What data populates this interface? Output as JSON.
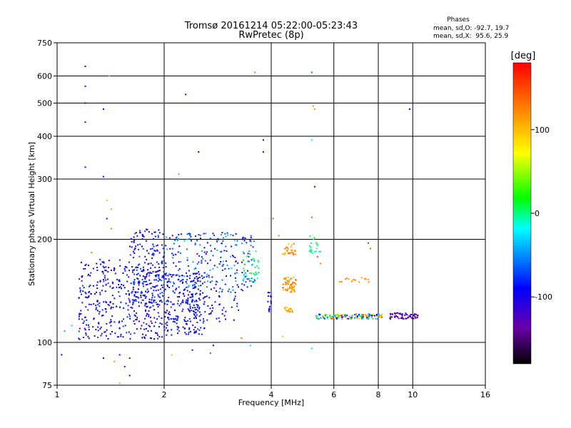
{
  "chart_data": {
    "type": "scatter",
    "title": "Tromsø 20161214 05:22:00-05:23:43",
    "subtitle": "RwPretec (8p)",
    "xlabel": "Frequency [MHz]",
    "ylabel": "Stationary phase Virtual Height [km]",
    "x_scale": "log",
    "y_scale": "log",
    "xlim": [
      1,
      16
    ],
    "ylim": [
      75,
      750
    ],
    "x_ticks": [
      1,
      2,
      4,
      6,
      8,
      10,
      16
    ],
    "x_tick_labels": [
      "1",
      "2",
      "4",
      "6",
      "8",
      "10",
      "16"
    ],
    "y_ticks": [
      75,
      100,
      200,
      300,
      400,
      500,
      600,
      750
    ],
    "y_tick_labels": [
      "75",
      "100",
      "200",
      "300",
      "400",
      "500",
      "600",
      "750"
    ],
    "grid": true,
    "colorbar": {
      "label": "[deg]",
      "range": [
        -180,
        180
      ],
      "ticks": [
        100,
        0,
        -100
      ],
      "tick_labels": [
        "100",
        "0",
        "-100"
      ],
      "colors": [
        "#000000",
        "#6a00a8",
        "#0000ff",
        "#00ffff",
        "#00ff00",
        "#ffff00",
        "#ff8000",
        "#ff0000"
      ]
    },
    "stats": {
      "heading": "Phases",
      "lines": [
        "mean, sd,O: -92.7, 19.7",
        "mean, sd,X:  95.6, 25.9"
      ]
    },
    "clusters": [
      {
        "fmin": 1.15,
        "fmax": 2.0,
        "hmin": 102,
        "hmax": 175,
        "n": 420,
        "pmin": -120,
        "pmax": -70
      },
      {
        "fmin": 1.6,
        "fmax": 2.0,
        "hmin": 130,
        "hmax": 215,
        "n": 160,
        "pmin": -120,
        "pmax": -60
      },
      {
        "fmin": 2.0,
        "fmax": 2.6,
        "hmin": 105,
        "hmax": 160,
        "n": 230,
        "pmin": -115,
        "pmax": -70
      },
      {
        "fmin": 2.0,
        "fmax": 3.6,
        "hmin": 140,
        "hmax": 210,
        "n": 240,
        "pmin": -120,
        "pmax": -30
      },
      {
        "fmin": 2.3,
        "fmax": 3.3,
        "hmin": 115,
        "hmax": 140,
        "n": 60,
        "pmin": -110,
        "pmax": -75
      },
      {
        "fmin": 3.3,
        "fmax": 3.7,
        "hmin": 150,
        "hmax": 185,
        "n": 40,
        "pmin": -40,
        "pmax": 20
      },
      {
        "fmin": 3.9,
        "fmax": 4.0,
        "hmin": 120,
        "hmax": 140,
        "n": 15,
        "pmin": -120,
        "pmax": -90
      },
      {
        "fmin": 4.3,
        "fmax": 4.7,
        "hmin": 140,
        "hmax": 155,
        "n": 60,
        "pmin": 95,
        "pmax": 140
      },
      {
        "fmin": 4.3,
        "fmax": 4.7,
        "hmin": 180,
        "hmax": 195,
        "n": 30,
        "pmin": 90,
        "pmax": 140
      },
      {
        "fmin": 4.35,
        "fmax": 4.6,
        "hmin": 122,
        "hmax": 127,
        "n": 20,
        "pmin": 100,
        "pmax": 130
      },
      {
        "fmin": 5.1,
        "fmax": 5.5,
        "hmin": 182,
        "hmax": 205,
        "n": 20,
        "pmin": -30,
        "pmax": 30
      },
      {
        "fmin": 5.35,
        "fmax": 8.2,
        "hmin": 117,
        "hmax": 121,
        "n": 150,
        "pmin": -120,
        "pmax": 160
      },
      {
        "fmin": 8.6,
        "fmax": 10.4,
        "hmin": 117,
        "hmax": 122,
        "n": 60,
        "pmin": -160,
        "pmax": -110
      },
      {
        "fmin": 6.2,
        "fmax": 7.6,
        "hmin": 150,
        "hmax": 155,
        "n": 15,
        "pmin": 110,
        "pmax": 130
      }
    ],
    "scattered_points": [
      [
        1.2,
        640,
        -90
      ],
      [
        1.2,
        560,
        -95
      ],
      [
        1.2,
        500,
        -95
      ],
      [
        1.2,
        440,
        -95
      ],
      [
        1.2,
        325,
        -95
      ],
      [
        1.35,
        480,
        -95
      ],
      [
        1.4,
        600,
        120
      ],
      [
        1.35,
        305,
        -90
      ],
      [
        1.38,
        260,
        100
      ],
      [
        1.42,
        245,
        110
      ],
      [
        1.38,
        230,
        -85
      ],
      [
        1.42,
        215,
        130
      ],
      [
        2.3,
        530,
        -95
      ],
      [
        2.2,
        310,
        120
      ],
      [
        2.5,
        360,
        -95
      ],
      [
        3.6,
        615,
        130
      ],
      [
        3.8,
        390,
        -90
      ],
      [
        3.8,
        360,
        -90
      ],
      [
        5.2,
        615,
        -60
      ],
      [
        5.2,
        390,
        -20
      ],
      [
        5.25,
        490,
        120
      ],
      [
        5.3,
        480,
        120
      ],
      [
        5.3,
        285,
        -100
      ],
      [
        5.2,
        232,
        150
      ],
      [
        9.8,
        480,
        -100
      ],
      [
        4.05,
        230,
        140
      ],
      [
        1.05,
        108,
        -40
      ],
      [
        1.1,
        112,
        -30
      ],
      [
        1.03,
        92,
        -90
      ],
      [
        1.2,
        140,
        -80
      ],
      [
        1.25,
        183,
        130
      ],
      [
        1.3,
        150,
        -90
      ],
      [
        1.35,
        90,
        -90
      ],
      [
        1.5,
        92,
        -90
      ],
      [
        1.55,
        85,
        -80
      ],
      [
        1.6,
        90,
        -80
      ],
      [
        1.6,
        80,
        -90
      ],
      [
        1.45,
        88,
        120
      ],
      [
        1.5,
        76,
        110
      ],
      [
        2.1,
        92,
        100
      ],
      [
        2.4,
        95,
        -90
      ],
      [
        2.7,
        93,
        -60
      ],
      [
        2.75,
        98,
        -95
      ],
      [
        3.5,
        98,
        -20
      ],
      [
        3.3,
        103,
        140
      ],
      [
        5.2,
        96,
        -30
      ],
      [
        4.3,
        104,
        100
      ],
      [
        7.5,
        195,
        -60
      ],
      [
        7.6,
        188,
        140
      ],
      [
        5.5,
        170,
        130
      ],
      [
        5.4,
        178,
        150
      ],
      [
        4.0,
        162,
        130
      ],
      [
        4.2,
        205,
        130
      ]
    ]
  }
}
